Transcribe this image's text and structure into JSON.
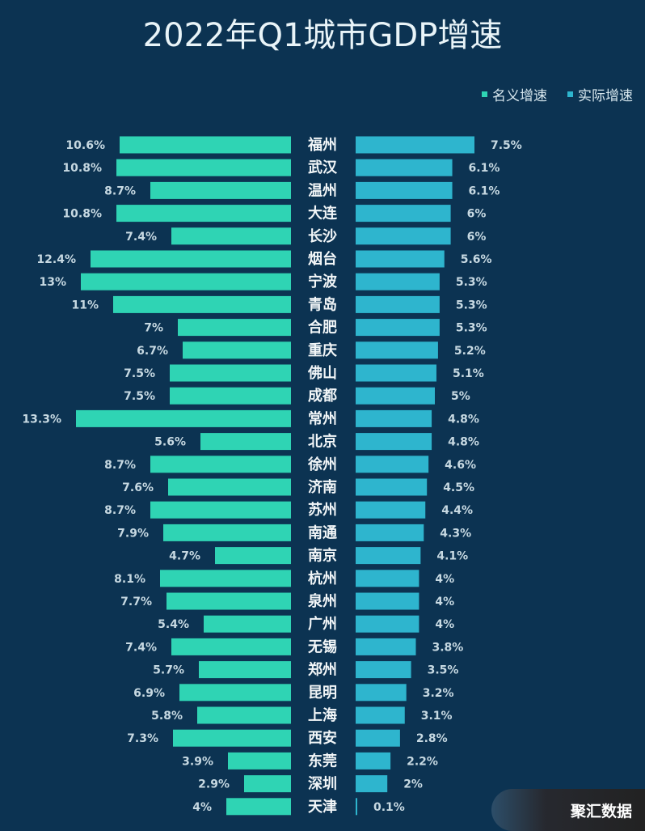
{
  "chart_data": {
    "type": "bar",
    "title": "2022年Q1城市GDP增速",
    "legend_position": "top-right",
    "categories": [
      "福州",
      "武汉",
      "温州",
      "大连",
      "长沙",
      "烟台",
      "宁波",
      "青岛",
      "合肥",
      "重庆",
      "佛山",
      "成都",
      "常州",
      "北京",
      "徐州",
      "济南",
      "苏州",
      "南通",
      "南京",
      "杭州",
      "泉州",
      "广州",
      "无锡",
      "郑州",
      "昆明",
      "上海",
      "西安",
      "东莞",
      "深圳",
      "天津"
    ],
    "series": [
      {
        "name": "名义增速",
        "color": "#2fd4b4",
        "values": [
          10.6,
          10.8,
          8.7,
          10.8,
          7.4,
          12.4,
          13,
          11,
          7,
          6.7,
          7.5,
          7.5,
          13.3,
          5.6,
          8.7,
          7.6,
          8.7,
          7.9,
          4.7,
          8.1,
          7.7,
          5.4,
          7.4,
          5.7,
          6.9,
          5.8,
          7.3,
          3.9,
          2.9,
          4
        ],
        "labels": [
          "10.6%",
          "10.8%",
          "8.7%",
          "10.8%",
          "7.4%",
          "12.4%",
          "13%",
          "11%",
          "7%",
          "6.7%",
          "7.5%",
          "7.5%",
          "13.3%",
          "5.6%",
          "8.7%",
          "7.6%",
          "8.7%",
          "7.9%",
          "4.7%",
          "8.1%",
          "7.7%",
          "5.4%",
          "7.4%",
          "5.7%",
          "6.9%",
          "5.8%",
          "7.3%",
          "3.9%",
          "2.9%",
          "4%"
        ]
      },
      {
        "name": "实际增速",
        "color": "#2eb5ce",
        "values": [
          7.5,
          6.1,
          6.1,
          6,
          6,
          5.6,
          5.3,
          5.3,
          5.3,
          5.2,
          5.1,
          5,
          4.8,
          4.8,
          4.6,
          4.5,
          4.4,
          4.3,
          4.1,
          4,
          4,
          4,
          3.8,
          3.5,
          3.2,
          3.1,
          2.8,
          2.2,
          2,
          0.1
        ],
        "labels": [
          "7.5%",
          "6.1%",
          "6.1%",
          "6%",
          "6%",
          "5.6%",
          "5.3%",
          "5.3%",
          "5.3%",
          "5.2%",
          "5.1%",
          "5%",
          "4.8%",
          "4.8%",
          "4.6%",
          "4.5%",
          "4.4%",
          "4.3%",
          "4.1%",
          "4%",
          "4%",
          "4%",
          "3.8%",
          "3.5%",
          "3.2%",
          "3.1%",
          "2.8%",
          "2.2%",
          "2%",
          "0.1%"
        ]
      }
    ]
  },
  "watermark": "聚汇数据"
}
